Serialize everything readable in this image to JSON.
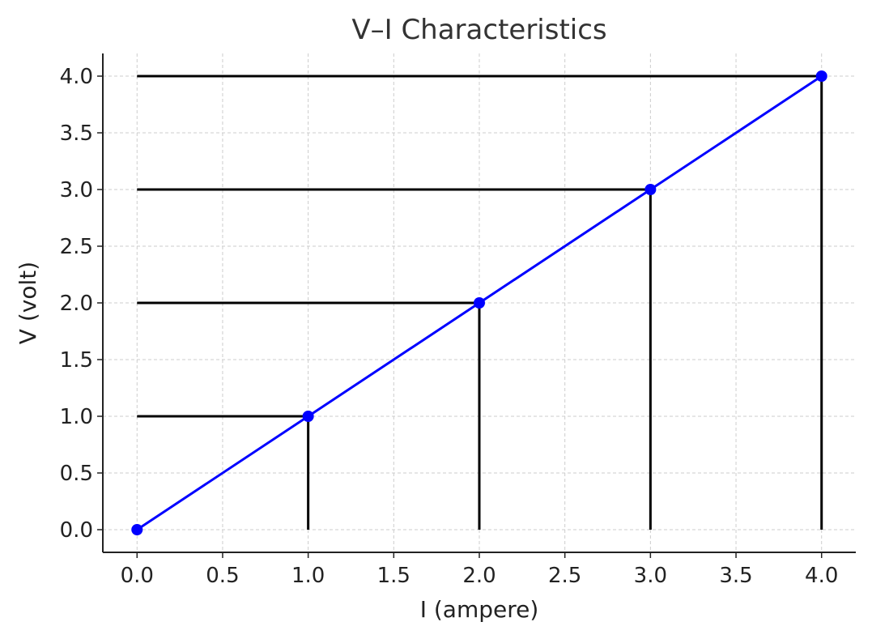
{
  "chart_data": {
    "type": "line",
    "title": "V–I Characteristics",
    "xlabel": "I (ampere)",
    "ylabel": "V (volt)",
    "xlim": [
      -0.2,
      4.2
    ],
    "ylim": [
      -0.2,
      4.2
    ],
    "x_ticks": [
      "0.0",
      "0.5",
      "1.0",
      "1.5",
      "2.0",
      "2.5",
      "3.0",
      "3.5",
      "4.0"
    ],
    "y_ticks": [
      "0.0",
      "0.5",
      "1.0",
      "1.5",
      "2.0",
      "2.5",
      "3.0",
      "3.5",
      "4.0"
    ],
    "grid": true,
    "series": [
      {
        "x": [
          0,
          1,
          2,
          3,
          4
        ],
        "y": [
          0,
          1,
          2,
          3,
          4
        ],
        "color": "#0000ff",
        "marker": "circle"
      }
    ],
    "reference_lines": {
      "color": "#000000",
      "horizontal": [
        {
          "y": 1,
          "x_from": 0,
          "x_to": 1
        },
        {
          "y": 2,
          "x_from": 0,
          "x_to": 2
        },
        {
          "y": 3,
          "x_from": 0,
          "x_to": 3
        },
        {
          "y": 4,
          "x_from": 0,
          "x_to": 4
        }
      ],
      "vertical": [
        {
          "x": 1,
          "y_from": 0,
          "y_to": 1
        },
        {
          "x": 2,
          "y_from": 0,
          "y_to": 2
        },
        {
          "x": 3,
          "y_from": 0,
          "y_to": 3
        },
        {
          "x": 4,
          "y_from": 0,
          "y_to": 4
        }
      ]
    }
  }
}
